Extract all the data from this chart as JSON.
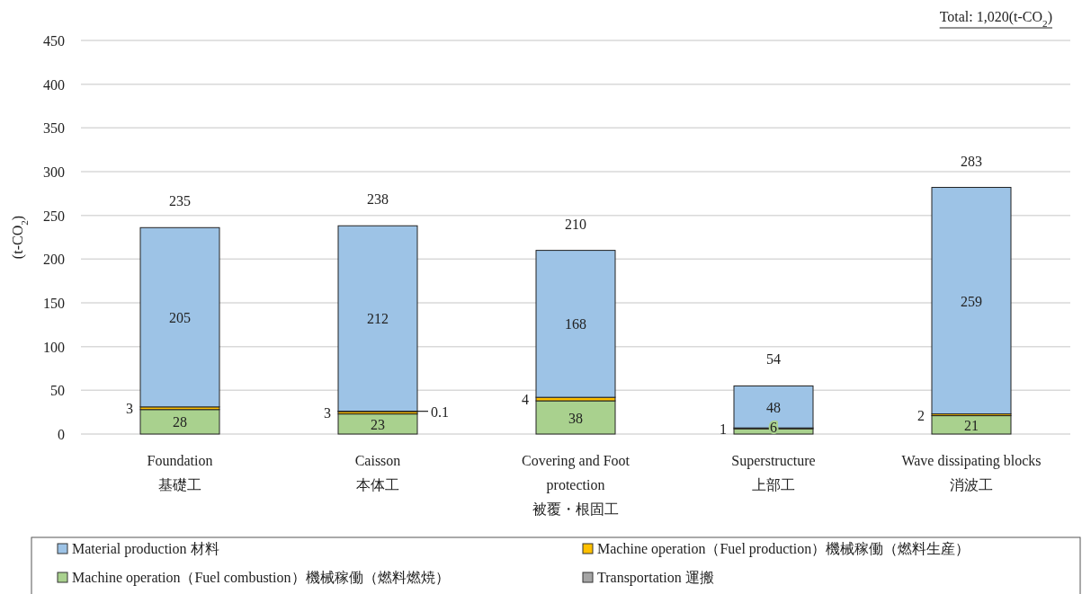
{
  "chart_data": {
    "type": "bar",
    "stacked": true,
    "categories": [
      "Foundation\n基礎工",
      "Caisson\n本体工",
      "Covering and Foot\nprotection\n被覆・根固工",
      "Superstructure\n上部工",
      "Wave dissipating blocks\n消波工"
    ],
    "series": [
      {
        "name": "Machine operation（Fuel combustion）機械稼働（燃料燃焼）",
        "color": "#a9d18e",
        "values": [
          28,
          23,
          38,
          6,
          21
        ],
        "value_labels": [
          "28",
          "23",
          "38",
          "6",
          "21"
        ]
      },
      {
        "name": "Machine operation（Fuel production）機械稼働（燃料生産）",
        "color": "#ffc000",
        "values": [
          3,
          3,
          4,
          1,
          2
        ],
        "value_labels": [
          "3",
          "3",
          "4",
          "1",
          "2"
        ]
      },
      {
        "name": "Transportation 運搬",
        "color": "#a5a5a5",
        "values": [
          null,
          0.1,
          null,
          null,
          null
        ],
        "value_labels": [
          null,
          "0.1",
          null,
          null,
          null
        ]
      },
      {
        "name": "Material production 材料",
        "color": "#9dc3e6",
        "values": [
          205,
          212,
          168,
          48,
          259
        ],
        "value_labels": [
          "205",
          "212",
          "168",
          "48",
          "259"
        ]
      }
    ],
    "totals": [
      "235",
      "238",
      "210",
      "54",
      "283"
    ],
    "ylabel": "(t-CO$_{2}$)",
    "ylim": [
      0,
      450
    ],
    "yticks": [
      0,
      50,
      100,
      150,
      200,
      250,
      300,
      350,
      400,
      450
    ],
    "grid": "y",
    "legend": "bottom",
    "annotations": [
      "Total: 1,020(t-CO$_{2}$)"
    ]
  }
}
